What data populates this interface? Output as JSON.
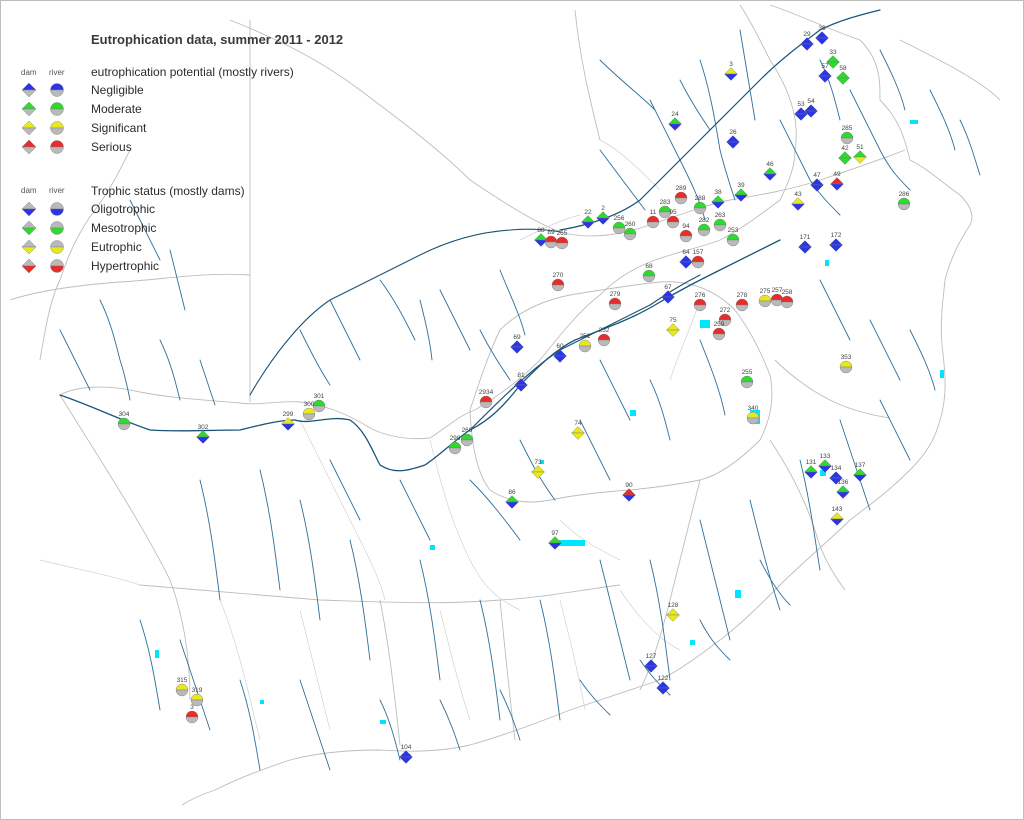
{
  "title": "Eutrophication data, summer 2011 - 2012",
  "legend": {
    "col_dam": "dam",
    "col_river": "river",
    "potential": {
      "heading": "eutrophication potential (mostly rivers)",
      "items": [
        {
          "label": "Negligible",
          "color": "#2b35e8"
        },
        {
          "label": "Moderate",
          "color": "#2fd92f"
        },
        {
          "label": "Significant",
          "color": "#e8e81e"
        },
        {
          "label": "Serious",
          "color": "#e82b2b"
        }
      ]
    },
    "trophic": {
      "heading": "Trophic status (mostly dams)",
      "items": [
        {
          "label": "Oligotrophic",
          "color": "#2b35e8"
        },
        {
          "label": "Mesotrophic",
          "color": "#2fd92f"
        },
        {
          "label": "Eutrophic",
          "color": "#e8e81e"
        },
        {
          "label": "Hypertrophic",
          "color": "#e82b2b"
        }
      ],
      "neutral_color": "#b9b9b9"
    }
  },
  "colors": {
    "river": "#1f5f8b",
    "boundary": "#bcbcbc",
    "water": "#00e5ff"
  },
  "sites": [
    {
      "id": "29",
      "shape": "dam",
      "status": "negligible",
      "trophic": "oligotrophic"
    },
    {
      "id": "36",
      "shape": "dam",
      "status": "negligible",
      "trophic": "oligotrophic"
    },
    {
      "id": "33",
      "shape": "dam",
      "status": "moderate",
      "trophic": "mesotrophic"
    },
    {
      "id": "58",
      "shape": "dam",
      "status": "moderate",
      "trophic": "mesotrophic"
    },
    {
      "id": "57",
      "shape": "dam",
      "status": "negligible",
      "trophic": "oligotrophic"
    },
    {
      "id": "3",
      "shape": "dam",
      "status": "significant",
      "trophic": "oligotrophic"
    },
    {
      "id": "53",
      "shape": "dam",
      "status": "negligible",
      "trophic": "oligotrophic"
    },
    {
      "id": "54",
      "shape": "dam",
      "status": "negligible",
      "trophic": "oligotrophic"
    },
    {
      "id": "24",
      "shape": "dam",
      "status": "moderate",
      "trophic": "oligotrophic"
    },
    {
      "id": "26",
      "shape": "dam",
      "status": "negligible",
      "trophic": "oligotrophic"
    },
    {
      "id": "285",
      "shape": "river",
      "status": "moderate",
      "trophic": "eutrophic"
    },
    {
      "id": "42",
      "shape": "dam",
      "status": "moderate",
      "trophic": "mesotrophic"
    },
    {
      "id": "51",
      "shape": "dam",
      "status": "moderate",
      "trophic": "eutrophic"
    },
    {
      "id": "46",
      "shape": "dam",
      "status": "moderate",
      "trophic": "oligotrophic"
    },
    {
      "id": "47",
      "shape": "dam",
      "status": "negligible",
      "trophic": "oligotrophic"
    },
    {
      "id": "49",
      "shape": "dam",
      "status": "serious",
      "trophic": "oligotrophic"
    },
    {
      "id": "43",
      "shape": "dam",
      "status": "significant",
      "trophic": "oligotrophic"
    },
    {
      "id": "286",
      "shape": "river",
      "status": "moderate",
      "trophic": "eutrophic"
    },
    {
      "id": "38",
      "shape": "dam",
      "status": "moderate",
      "trophic": "oligotrophic"
    },
    {
      "id": "39",
      "shape": "dam",
      "status": "moderate",
      "trophic": "oligotrophic"
    },
    {
      "id": "289",
      "shape": "river",
      "status": "serious",
      "trophic": "eutrophic"
    },
    {
      "id": "288",
      "shape": "river",
      "status": "moderate",
      "trophic": "eutrophic"
    },
    {
      "id": "283",
      "shape": "river",
      "status": "moderate",
      "trophic": "eutrophic"
    },
    {
      "id": "11",
      "shape": "river",
      "status": "serious",
      "trophic": "eutrophic"
    },
    {
      "id": "95",
      "shape": "river",
      "status": "serious",
      "trophic": "eutrophic"
    },
    {
      "id": "94",
      "shape": "river",
      "status": "serious",
      "trophic": "eutrophic"
    },
    {
      "id": "263",
      "shape": "river",
      "status": "moderate",
      "trophic": "eutrophic"
    },
    {
      "id": "282",
      "shape": "river",
      "status": "moderate",
      "trophic": "eutrophic"
    },
    {
      "id": "253",
      "shape": "river",
      "status": "moderate",
      "trophic": "eutrophic"
    },
    {
      "id": "171",
      "shape": "dam",
      "status": "negligible",
      "trophic": "oligotrophic"
    },
    {
      "id": "172",
      "shape": "dam",
      "status": "negligible",
      "trophic": "oligotrophic"
    },
    {
      "id": "22",
      "shape": "dam",
      "status": "moderate",
      "trophic": "oligotrophic"
    },
    {
      "id": "2",
      "shape": "dam",
      "status": "moderate",
      "trophic": "oligotrophic"
    },
    {
      "id": "256",
      "shape": "river",
      "status": "moderate",
      "trophic": "eutrophic"
    },
    {
      "id": "260",
      "shape": "river",
      "status": "moderate",
      "trophic": "eutrophic"
    },
    {
      "id": "88",
      "shape": "dam",
      "status": "moderate",
      "trophic": "oligotrophic"
    },
    {
      "id": "89",
      "shape": "river",
      "status": "serious",
      "trophic": "eutrophic"
    },
    {
      "id": "265",
      "shape": "river",
      "status": "serious",
      "trophic": "eutrophic"
    },
    {
      "id": "64",
      "shape": "dam",
      "status": "negligible",
      "trophic": "oligotrophic"
    },
    {
      "id": "157",
      "shape": "river",
      "status": "serious",
      "trophic": "eutrophic"
    },
    {
      "id": "270",
      "shape": "river",
      "status": "serious",
      "trophic": "eutrophic"
    },
    {
      "id": "68",
      "shape": "river",
      "status": "moderate",
      "trophic": "eutrophic"
    },
    {
      "id": "279",
      "shape": "river",
      "status": "serious",
      "trophic": "eutrophic"
    },
    {
      "id": "67",
      "shape": "dam",
      "status": "negligible",
      "trophic": "oligotrophic"
    },
    {
      "id": "276",
      "shape": "river",
      "status": "serious",
      "trophic": "eutrophic"
    },
    {
      "id": "278",
      "shape": "river",
      "status": "serious",
      "trophic": "eutrophic"
    },
    {
      "id": "272",
      "shape": "river",
      "status": "serious",
      "trophic": "eutrophic"
    },
    {
      "id": "275",
      "shape": "river",
      "status": "significant",
      "trophic": "eutrophic"
    },
    {
      "id": "257",
      "shape": "river",
      "status": "serious",
      "trophic": "eutrophic"
    },
    {
      "id": "258",
      "shape": "river",
      "status": "serious",
      "trophic": "eutrophic"
    },
    {
      "id": "75",
      "shape": "dam",
      "status": "significant",
      "trophic": "eutrophic"
    },
    {
      "id": "69",
      "shape": "dam",
      "status": "negligible",
      "trophic": "oligotrophic"
    },
    {
      "id": "60",
      "shape": "dam",
      "status": "negligible",
      "trophic": "oligotrophic"
    },
    {
      "id": "252",
      "shape": "river",
      "status": "serious",
      "trophic": "eutrophic"
    },
    {
      "id": "251",
      "shape": "river",
      "status": "significant",
      "trophic": "eutrophic"
    },
    {
      "id": "353",
      "shape": "river",
      "status": "significant",
      "trophic": "eutrophic"
    },
    {
      "id": "255",
      "shape": "river",
      "status": "moderate",
      "trophic": "eutrophic"
    },
    {
      "id": "259",
      "shape": "river",
      "status": "serious",
      "trophic": "eutrophic"
    },
    {
      "id": "81",
      "shape": "dam",
      "status": "negligible",
      "trophic": "oligotrophic"
    },
    {
      "id": "2934",
      "shape": "river",
      "status": "serious",
      "trophic": "eutrophic"
    },
    {
      "id": "301",
      "shape": "river",
      "status": "moderate",
      "trophic": "eutrophic"
    },
    {
      "id": "300",
      "shape": "river",
      "status": "significant",
      "trophic": "eutrophic"
    },
    {
      "id": "299",
      "shape": "dam",
      "status": "significant",
      "trophic": "oligotrophic"
    },
    {
      "id": "304",
      "shape": "river",
      "status": "moderate",
      "trophic": "eutrophic"
    },
    {
      "id": "302",
      "shape": "dam",
      "status": "moderate",
      "trophic": "oligotrophic"
    },
    {
      "id": "74",
      "shape": "dam",
      "status": "significant",
      "trophic": "eutrophic"
    },
    {
      "id": "298",
      "shape": "river",
      "status": "moderate",
      "trophic": "eutrophic"
    },
    {
      "id": "73",
      "shape": "dam",
      "status": "significant",
      "trophic": "eutrophic"
    },
    {
      "id": "86",
      "shape": "dam",
      "status": "moderate",
      "trophic": "oligotrophic"
    },
    {
      "id": "90",
      "shape": "dam",
      "status": "serious",
      "trophic": "oligotrophic"
    },
    {
      "id": "97",
      "shape": "dam",
      "status": "moderate",
      "trophic": "oligotrophic"
    },
    {
      "id": "133",
      "shape": "dam",
      "status": "moderate",
      "trophic": "oligotrophic"
    },
    {
      "id": "131",
      "shape": "dam",
      "status": "moderate",
      "trophic": "oligotrophic"
    },
    {
      "id": "134",
      "shape": "dam",
      "status": "negligible",
      "trophic": "oligotrophic"
    },
    {
      "id": "137",
      "shape": "dam",
      "status": "moderate",
      "trophic": "oligotrophic"
    },
    {
      "id": "136",
      "shape": "dam",
      "status": "moderate",
      "trophic": "oligotrophic"
    },
    {
      "id": "143",
      "shape": "dam",
      "status": "significant",
      "trophic": "oligotrophic"
    },
    {
      "id": "128",
      "shape": "dam",
      "status": "significant",
      "trophic": "eutrophic"
    },
    {
      "id": "127",
      "shape": "dam",
      "status": "negligible",
      "trophic": "oligotrophic"
    },
    {
      "id": "122",
      "shape": "dam",
      "status": "negligible",
      "trophic": "oligotrophic"
    },
    {
      "id": "315",
      "shape": "river",
      "status": "significant",
      "trophic": "eutrophic"
    },
    {
      "id": "319",
      "shape": "river",
      "status": "significant",
      "trophic": "eutrophic"
    },
    {
      "id": "3",
      "shape": "river",
      "status": "serious",
      "trophic": "eutrophic"
    },
    {
      "id": "104",
      "shape": "dam",
      "status": "negligible",
      "trophic": "oligotrophic"
    },
    {
      "id": "340",
      "shape": "river",
      "status": "significant",
      "trophic": "eutrophic"
    },
    {
      "id": "266",
      "shape": "river",
      "status": "moderate",
      "trophic": "eutrophic"
    }
  ]
}
